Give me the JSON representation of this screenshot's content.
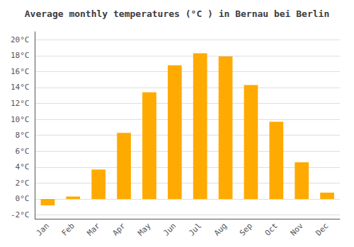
{
  "chart_data": {
    "type": "bar",
    "title": "Average monthly temperatures (°C ) in Bernau bei Berlin",
    "categories": [
      "Jan",
      "Feb",
      "Mar",
      "Apr",
      "May",
      "Jun",
      "Jul",
      "Aug",
      "Sep",
      "Oct",
      "Nov",
      "Dec"
    ],
    "values": [
      -0.8,
      0.3,
      3.7,
      8.3,
      13.4,
      16.8,
      18.3,
      17.9,
      14.3,
      9.7,
      4.6,
      0.8
    ],
    "color": "#FFAA00",
    "ylim": [
      -2.5,
      21.0
    ],
    "yticks": [
      {
        "value": -2,
        "label": "-2°C"
      },
      {
        "value": 0,
        "label": "0°C"
      },
      {
        "value": 2,
        "label": "2°C"
      },
      {
        "value": 4,
        "label": "4°C"
      },
      {
        "value": 6,
        "label": "6°C"
      },
      {
        "value": 8,
        "label": "8°C"
      },
      {
        "value": 10,
        "label": "10°C"
      },
      {
        "value": 12,
        "label": "12°C"
      },
      {
        "value": 14,
        "label": "14°C"
      },
      {
        "value": 16,
        "label": "16°C"
      },
      {
        "value": 18,
        "label": "18°C"
      },
      {
        "value": 20,
        "label": "20°C"
      }
    ],
    "grid": true
  }
}
